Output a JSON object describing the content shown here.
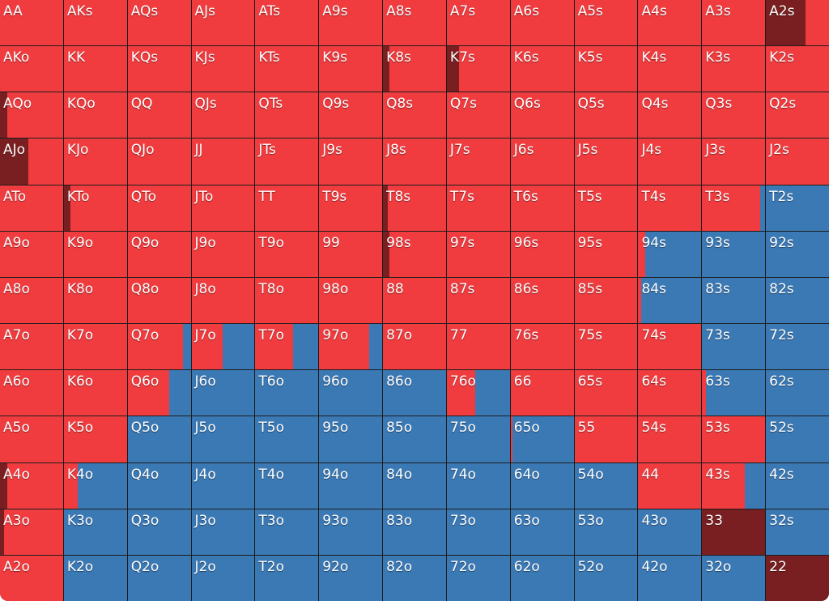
{
  "colors": {
    "dark": "#7a1f21",
    "red": "#f03c3f",
    "blue": "#3b79b5"
  },
  "rows": [
    [
      [
        "AA",
        0,
        1,
        0
      ],
      [
        "AKs",
        0,
        1,
        0
      ],
      [
        "AQs",
        0,
        1,
        0
      ],
      [
        "AJs",
        0,
        1,
        0
      ],
      [
        "ATs",
        0,
        1,
        0
      ],
      [
        "A9s",
        0,
        1,
        0
      ],
      [
        "A8s",
        0,
        1,
        0
      ],
      [
        "A7s",
        0,
        1,
        0
      ],
      [
        "A6s",
        0,
        1,
        0
      ],
      [
        "A5s",
        0,
        1,
        0
      ],
      [
        "A4s",
        0,
        1,
        0
      ],
      [
        "A3s",
        0,
        1,
        0
      ],
      [
        "A2s",
        0.63,
        0.37,
        0
      ]
    ],
    [
      [
        "AKo",
        0,
        1,
        0
      ],
      [
        "KK",
        0,
        1,
        0
      ],
      [
        "KQs",
        0,
        1,
        0
      ],
      [
        "KJs",
        0,
        1,
        0
      ],
      [
        "KTs",
        0,
        1,
        0
      ],
      [
        "K9s",
        0,
        1,
        0
      ],
      [
        "K8s",
        0.1,
        0.9,
        0
      ],
      [
        "K7s",
        0.2,
        0.8,
        0
      ],
      [
        "K6s",
        0,
        1,
        0
      ],
      [
        "K5s",
        0,
        1,
        0
      ],
      [
        "K4s",
        0,
        1,
        0
      ],
      [
        "K3s",
        0,
        1,
        0
      ],
      [
        "K2s",
        0,
        1,
        0
      ]
    ],
    [
      [
        "AQo",
        0.12,
        0.88,
        0
      ],
      [
        "KQo",
        0,
        1,
        0
      ],
      [
        "QQ",
        0,
        1,
        0
      ],
      [
        "QJs",
        0,
        1,
        0
      ],
      [
        "QTs",
        0,
        1,
        0
      ],
      [
        "Q9s",
        0,
        1,
        0
      ],
      [
        "Q8s",
        0,
        1,
        0
      ],
      [
        "Q7s",
        0,
        1,
        0
      ],
      [
        "Q6s",
        0,
        1,
        0
      ],
      [
        "Q5s",
        0,
        1,
        0
      ],
      [
        "Q4s",
        0,
        1,
        0
      ],
      [
        "Q3s",
        0,
        1,
        0
      ],
      [
        "Q2s",
        0,
        1,
        0
      ]
    ],
    [
      [
        "AJo",
        0.45,
        0.55,
        0
      ],
      [
        "KJo",
        0,
        1,
        0
      ],
      [
        "QJo",
        0,
        1,
        0
      ],
      [
        "JJ",
        0,
        1,
        0
      ],
      [
        "JTs",
        0,
        1,
        0
      ],
      [
        "J9s",
        0,
        1,
        0
      ],
      [
        "J8s",
        0,
        1,
        0
      ],
      [
        "J7s",
        0,
        1,
        0
      ],
      [
        "J6s",
        0,
        1,
        0
      ],
      [
        "J5s",
        0,
        1,
        0
      ],
      [
        "J4s",
        0,
        1,
        0
      ],
      [
        "J3s",
        0,
        1,
        0
      ],
      [
        "J2s",
        0,
        1,
        0
      ]
    ],
    [
      [
        "ATo",
        0,
        1,
        0
      ],
      [
        "KTo",
        0.1,
        0.9,
        0
      ],
      [
        "QTo",
        0,
        1,
        0
      ],
      [
        "JTo",
        0,
        1,
        0
      ],
      [
        "TT",
        0,
        1,
        0
      ],
      [
        "T9s",
        0,
        1,
        0
      ],
      [
        "T8s",
        0.07,
        0.93,
        0
      ],
      [
        "T7s",
        0,
        1,
        0
      ],
      [
        "T6s",
        0,
        1,
        0
      ],
      [
        "T5s",
        0,
        1,
        0
      ],
      [
        "T4s",
        0,
        1,
        0
      ],
      [
        "T3s",
        0,
        0.92,
        0.08
      ],
      [
        "T2s",
        0,
        0,
        1
      ]
    ],
    [
      [
        "A9o",
        0,
        1,
        0
      ],
      [
        "K9o",
        0,
        1,
        0
      ],
      [
        "Q9o",
        0,
        1,
        0
      ],
      [
        "J9o",
        0,
        1,
        0
      ],
      [
        "T9o",
        0,
        1,
        0
      ],
      [
        "99",
        0,
        1,
        0
      ],
      [
        "98s",
        0.1,
        0.9,
        0
      ],
      [
        "97s",
        0,
        1,
        0
      ],
      [
        "96s",
        0,
        1,
        0
      ],
      [
        "95s",
        0,
        1,
        0
      ],
      [
        "94s",
        0,
        0.11,
        0.89
      ],
      [
        "93s",
        0,
        0,
        1
      ],
      [
        "92s",
        0,
        0,
        1
      ]
    ],
    [
      [
        "A8o",
        0,
        1,
        0
      ],
      [
        "K8o",
        0,
        1,
        0
      ],
      [
        "Q8o",
        0,
        1,
        0
      ],
      [
        "J8o",
        0,
        1,
        0
      ],
      [
        "T8o",
        0,
        1,
        0
      ],
      [
        "98o",
        0,
        1,
        0
      ],
      [
        "88",
        0,
        1,
        0
      ],
      [
        "87s",
        0,
        1,
        0
      ],
      [
        "86s",
        0,
        1,
        0
      ],
      [
        "85s",
        0,
        1,
        0
      ],
      [
        "84s",
        0,
        0.05,
        0.95
      ],
      [
        "83s",
        0,
        0,
        1
      ],
      [
        "82s",
        0,
        0,
        1
      ]
    ],
    [
      [
        "A7o",
        0,
        1,
        0
      ],
      [
        "K7o",
        0,
        1,
        0
      ],
      [
        "Q7o",
        0,
        0.88,
        0.12
      ],
      [
        "J7o",
        0,
        0.5,
        0.5
      ],
      [
        "T7o",
        0,
        0.6,
        0.4
      ],
      [
        "97o",
        0,
        0.8,
        0.2
      ],
      [
        "87o",
        0,
        1,
        0
      ],
      [
        "77",
        0,
        1,
        0
      ],
      [
        "76s",
        0,
        1,
        0
      ],
      [
        "75s",
        0,
        1,
        0
      ],
      [
        "74s",
        0,
        1,
        0
      ],
      [
        "73s",
        0,
        0,
        1
      ],
      [
        "72s",
        0,
        0,
        1
      ]
    ],
    [
      [
        "A6o",
        0,
        1,
        0
      ],
      [
        "K6o",
        0,
        1,
        0
      ],
      [
        "Q6o",
        0,
        0.66,
        0.34
      ],
      [
        "J6o",
        0,
        0,
        1
      ],
      [
        "T6o",
        0,
        0,
        1
      ],
      [
        "96o",
        0,
        0,
        1
      ],
      [
        "86o",
        0,
        0,
        1
      ],
      [
        "76o",
        0,
        0.45,
        0.55
      ],
      [
        "66",
        0,
        1,
        0
      ],
      [
        "65s",
        0,
        1,
        0
      ],
      [
        "64s",
        0,
        1,
        0
      ],
      [
        "63s",
        0,
        0.06,
        0.94
      ],
      [
        "62s",
        0,
        0,
        1
      ]
    ],
    [
      [
        "A5o",
        0,
        1,
        0
      ],
      [
        "K5o",
        0,
        1,
        0
      ],
      [
        "Q5o",
        0,
        0,
        1
      ],
      [
        "J5o",
        0,
        0,
        1
      ],
      [
        "T5o",
        0,
        0,
        1
      ],
      [
        "95o",
        0,
        0,
        1
      ],
      [
        "85o",
        0,
        0,
        1
      ],
      [
        "75o",
        0,
        0,
        1
      ],
      [
        "65o",
        0,
        0.03,
        0.97
      ],
      [
        "55",
        0,
        1,
        0
      ],
      [
        "54s",
        0,
        1,
        0
      ],
      [
        "53s",
        0,
        1,
        0
      ],
      [
        "52s",
        0,
        0,
        1
      ]
    ],
    [
      [
        "A4o",
        0.12,
        0.88,
        0
      ],
      [
        "K4o",
        0,
        0.22,
        0.78
      ],
      [
        "Q4o",
        0,
        0,
        1
      ],
      [
        "J4o",
        0,
        0,
        1
      ],
      [
        "T4o",
        0,
        0,
        1
      ],
      [
        "94o",
        0,
        0,
        1
      ],
      [
        "84o",
        0,
        0,
        1
      ],
      [
        "74o",
        0,
        0,
        1
      ],
      [
        "64o",
        0,
        0,
        1
      ],
      [
        "54o",
        0,
        0,
        1
      ],
      [
        "44",
        0,
        1,
        0
      ],
      [
        "43s",
        0,
        0.68,
        0.32
      ],
      [
        "42s",
        0,
        0,
        1
      ]
    ],
    [
      [
        "A3o",
        0.06,
        0.94,
        0
      ],
      [
        "K3o",
        0,
        0,
        1
      ],
      [
        "Q3o",
        0,
        0,
        1
      ],
      [
        "J3o",
        0,
        0,
        1
      ],
      [
        "T3o",
        0,
        0,
        1
      ],
      [
        "93o",
        0,
        0,
        1
      ],
      [
        "83o",
        0,
        0,
        1
      ],
      [
        "73o",
        0,
        0,
        1
      ],
      [
        "63o",
        0,
        0,
        1
      ],
      [
        "53o",
        0,
        0,
        1
      ],
      [
        "43o",
        0,
        0,
        1
      ],
      [
        "33",
        1,
        0,
        0
      ],
      [
        "32s",
        0,
        0,
        1
      ]
    ],
    [
      [
        "A2o",
        0,
        1,
        0
      ],
      [
        "K2o",
        0,
        0,
        1
      ],
      [
        "Q2o",
        0,
        0,
        1
      ],
      [
        "J2o",
        0,
        0,
        1
      ],
      [
        "T2o",
        0,
        0,
        1
      ],
      [
        "92o",
        0,
        0,
        1
      ],
      [
        "82o",
        0,
        0,
        1
      ],
      [
        "72o",
        0,
        0,
        1
      ],
      [
        "62o",
        0,
        0,
        1
      ],
      [
        "52o",
        0,
        0,
        1
      ],
      [
        "42o",
        0,
        0,
        1
      ],
      [
        "32o",
        0,
        0,
        1
      ],
      [
        "22",
        1,
        0,
        0
      ]
    ]
  ]
}
